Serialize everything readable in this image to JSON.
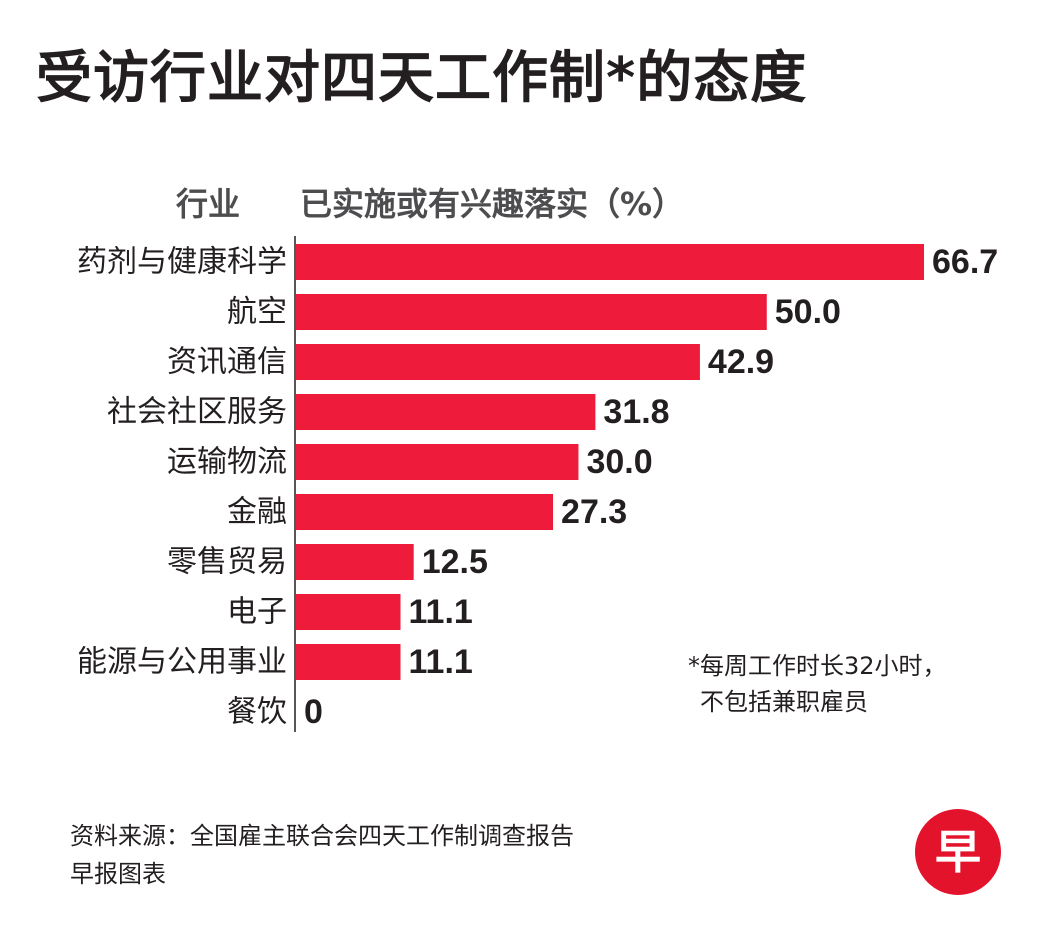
{
  "chart_data": {
    "type": "bar",
    "orientation": "horizontal",
    "title": "受访行业对四天工作制*的态度",
    "category_header": "行业",
    "value_header": "已实施或有兴趣落实（%）",
    "categories": [
      "药剂与健康科学",
      "航空",
      "资讯通信",
      "社会社区服务",
      "运输物流",
      "金融",
      "零售贸易",
      "电子",
      "能源与公用事业",
      "餐饮"
    ],
    "values": [
      66.7,
      50.0,
      42.9,
      31.8,
      30.0,
      27.3,
      12.5,
      11.1,
      11.1,
      0
    ],
    "value_labels": [
      "66.7",
      "50.0",
      "42.9",
      "31.8",
      "30.0",
      "27.3",
      "12.5",
      "11.1",
      "11.1",
      "0"
    ],
    "xlim": [
      0,
      66.7
    ],
    "grid": false,
    "bar_color": "#ee1c3a",
    "footnote": {
      "line1": "*每周工作时长32小时，",
      "line2": "不包括兼职雇员"
    }
  },
  "source": "资料来源：全国雇主联合会四天工作制调查报告",
  "credit": "早报图表",
  "logo": {
    "icon": "zaobao-logo-icon",
    "glyph": "早",
    "color": "#e4132c"
  }
}
